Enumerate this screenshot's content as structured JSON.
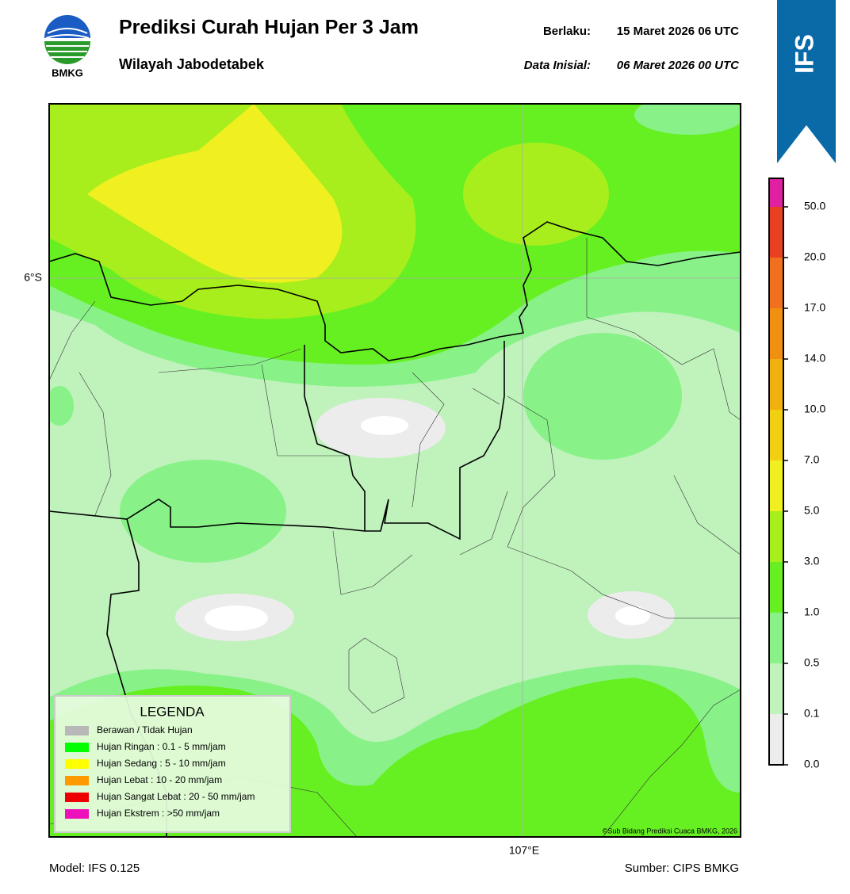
{
  "header": {
    "logo_text": "BMKG",
    "title": "Prediksi Curah Hujan Per 3 Jam",
    "subtitle": "Wilayah Jabodetabek",
    "valid_label": "Berlaku:",
    "valid_value": "15 Maret 2026 06 UTC",
    "init_label": "Data Inisial:",
    "init_value": "06 Maret 2026 00 UTC",
    "badge": "IFS"
  },
  "map": {
    "lat_label": "6°S",
    "lon_label": "107°E",
    "copyright": "©Sub Bidang Prediksi Cuaca BMKG, 2026"
  },
  "legend": {
    "title": "LEGENDA",
    "items": [
      {
        "label": "Berawan / Tidak Hujan",
        "color": "#b8b8b8"
      },
      {
        "label": "Hujan Ringan : 0.1 - 5 mm/jam",
        "color": "#00ff00"
      },
      {
        "label": "Hujan Sedang : 5 - 10 mm/jam",
        "color": "#ffff00"
      },
      {
        "label": "Hujan Lebat : 10 - 20 mm/jam",
        "color": "#ff9900"
      },
      {
        "label": "Hujan Sangat Lebat : 20 - 50 mm/jam",
        "color": "#ee0000"
      },
      {
        "label": "Hujan Ekstrem : >50 mm/jam",
        "color": "#ee11bb"
      }
    ]
  },
  "colorbar": {
    "labels": [
      "0.0",
      "0.1",
      "0.5",
      "1.0",
      "3.0",
      "5.0",
      "7.0",
      "10.0",
      "14.0",
      "17.0",
      "20.0",
      "50.0"
    ],
    "colors": [
      "#ececec",
      "#c0f2bc",
      "#88f288",
      "#66f022",
      "#a8ee1c",
      "#f0f020",
      "#f0d010",
      "#f0b010",
      "#f09010",
      "#f07020",
      "#e84020",
      "#e020a0"
    ]
  },
  "footer": {
    "model": "Model: IFS 0.125",
    "source": "Sumber: CIPS BMKG"
  }
}
